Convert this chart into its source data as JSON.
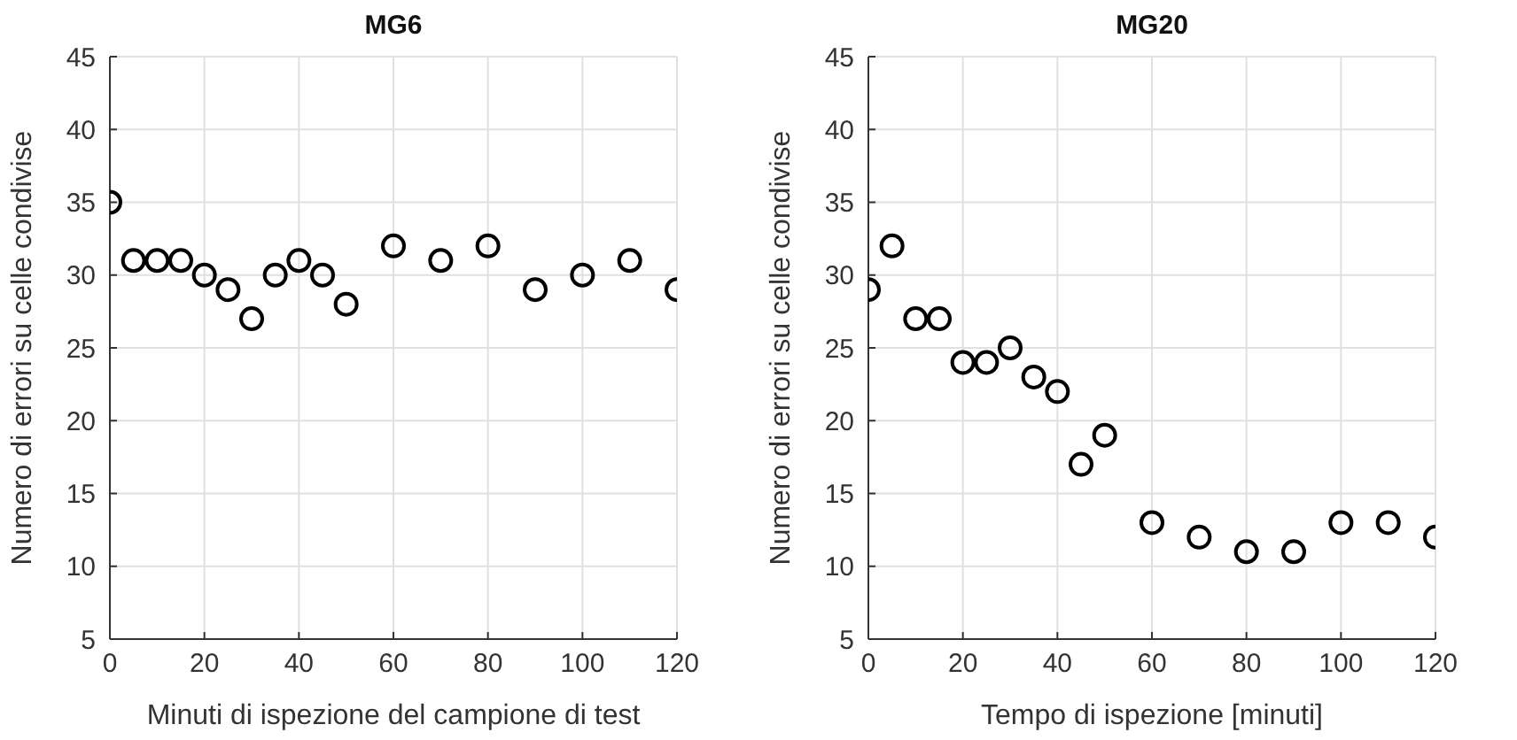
{
  "chart_data": [
    {
      "type": "scatter",
      "title": "MG6",
      "xlabel": "Minuti di ispezione del campione di test",
      "ylabel": "Numero di errori su celle condivise",
      "x": [
        0,
        5,
        10,
        15,
        20,
        25,
        30,
        35,
        40,
        45,
        50,
        60,
        70,
        80,
        90,
        100,
        110,
        120
      ],
      "series": [
        {
          "color": "#000000",
          "values": [
            35,
            31,
            31,
            31,
            30,
            29,
            27,
            30,
            31,
            30,
            28,
            32,
            31,
            32,
            29,
            30,
            31,
            29
          ]
        }
      ],
      "xlim": [
        0,
        120
      ],
      "xticks": [
        0,
        20,
        40,
        60,
        80,
        100,
        120
      ],
      "ylim": [
        5,
        45
      ],
      "yticks": [
        5,
        10,
        15,
        20,
        25,
        30,
        35,
        40,
        45
      ],
      "grid": true,
      "marker": "circle"
    },
    {
      "type": "scatter",
      "title": "MG20",
      "xlabel": "Tempo di ispezione [minuti]",
      "ylabel": "Numero di errori su celle condivise",
      "x": [
        0,
        5,
        10,
        15,
        20,
        25,
        30,
        35,
        40,
        45,
        50,
        60,
        70,
        80,
        90,
        100,
        110,
        120
      ],
      "series": [
        {
          "color": "#000000",
          "values": [
            29,
            32,
            27,
            27,
            24,
            24,
            25,
            23,
            22,
            17,
            19,
            13,
            12,
            11,
            11,
            13,
            13,
            12
          ]
        }
      ],
      "xlim": [
        0,
        120
      ],
      "xticks": [
        0,
        20,
        40,
        60,
        80,
        100,
        120
      ],
      "ylim": [
        5,
        45
      ],
      "yticks": [
        5,
        10,
        15,
        20,
        25,
        30,
        35,
        40,
        45
      ],
      "grid": true,
      "marker": "circle"
    }
  ]
}
